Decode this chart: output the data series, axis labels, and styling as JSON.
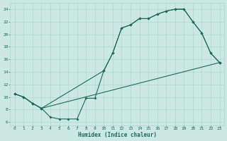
{
  "xlabel": "Humidex (Indice chaleur)",
  "bg_color": "#cce8e2",
  "line_color": "#1a6b5a",
  "grid_color": "#aad4cc",
  "xlim": [
    -0.5,
    23.5
  ],
  "ylim": [
    5.5,
    25.0
  ],
  "xticks": [
    0,
    1,
    2,
    3,
    4,
    5,
    6,
    7,
    8,
    9,
    10,
    11,
    12,
    13,
    14,
    15,
    16,
    17,
    18,
    19,
    20,
    21,
    22,
    23
  ],
  "yticks": [
    6,
    8,
    10,
    12,
    14,
    16,
    18,
    20,
    22,
    24
  ],
  "curve_zigzag_x": [
    0,
    1,
    2,
    3,
    4,
    5,
    6,
    7,
    8,
    9,
    10,
    11,
    12,
    13,
    14,
    15,
    16,
    17,
    18,
    19,
    20,
    21,
    22,
    23
  ],
  "curve_zigzag_y": [
    10.5,
    10.0,
    9.0,
    8.2,
    6.8,
    6.5,
    6.5,
    6.5,
    9.8,
    9.8,
    14.2,
    17.0,
    21.0,
    21.5,
    22.5,
    22.5,
    23.2,
    23.7,
    24.0,
    24.0,
    22.0,
    20.2,
    17.0,
    15.5
  ],
  "curve_upper_x": [
    0,
    1,
    2,
    3,
    10,
    11,
    12,
    13,
    14,
    15,
    16,
    17,
    18,
    19,
    20,
    21,
    22,
    23
  ],
  "curve_upper_y": [
    10.5,
    10.0,
    9.0,
    8.2,
    14.2,
    17.0,
    21.0,
    21.5,
    22.5,
    22.5,
    23.2,
    23.7,
    24.0,
    24.0,
    22.0,
    20.2,
    17.0,
    15.5
  ],
  "curve_straight_x": [
    0,
    1,
    2,
    3,
    23
  ],
  "curve_straight_y": [
    10.5,
    10.0,
    9.0,
    8.2,
    15.5
  ],
  "markersize": 1.8,
  "linewidth": 0.8
}
